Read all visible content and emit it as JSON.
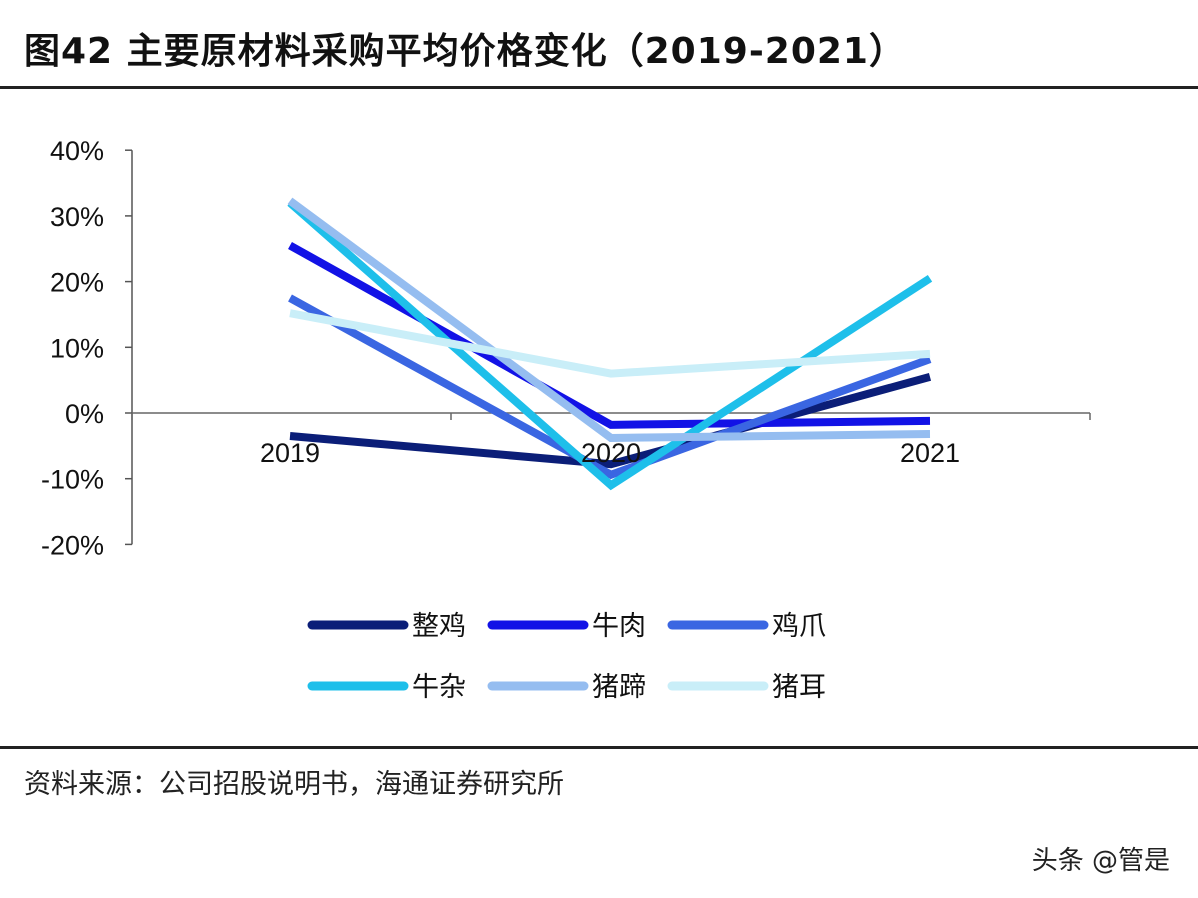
{
  "title": "图42 主要原材料采购平均价格变化（2019-2021）",
  "source": "资料来源：公司招股说明书，海通证券研究所",
  "watermark": "头条 @管是",
  "chart_data": {
    "type": "line",
    "categories": [
      "2019",
      "2020",
      "2021"
    ],
    "ylim": [
      -20,
      40
    ],
    "yticks": [
      "40%",
      "30%",
      "20%",
      "10%",
      "0%",
      "-10%",
      "-20%"
    ],
    "ytick_values": [
      40,
      30,
      20,
      10,
      0,
      -10,
      -20
    ],
    "grid": false,
    "legend_position": "bottom",
    "series": [
      {
        "name": "整鸡",
        "color": "#0b1e78",
        "values": [
          -3.5,
          -7.8,
          5.5
        ]
      },
      {
        "name": "牛肉",
        "color": "#1212e6",
        "values": [
          25.5,
          -1.8,
          -1.2
        ]
      },
      {
        "name": "鸡爪",
        "color": "#3a66e2",
        "values": [
          17.5,
          -9.4,
          8.2
        ]
      },
      {
        "name": "牛杂",
        "color": "#1ebfea",
        "values": [
          32.0,
          -11.0,
          20.5
        ]
      },
      {
        "name": "猪蹄",
        "color": "#95bdf0",
        "values": [
          32.3,
          -3.8,
          -3.2
        ]
      },
      {
        "name": "猪耳",
        "color": "#c9eef8",
        "values": [
          15.2,
          6.0,
          9.0
        ]
      }
    ]
  }
}
